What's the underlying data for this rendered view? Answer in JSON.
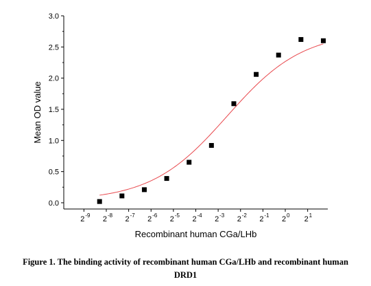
{
  "chart_data": {
    "type": "scatter",
    "title": "",
    "xlabel": "Recombinant human CGa/LHb",
    "ylabel": "Mean OD value",
    "x_scale": "log2",
    "x_tick_exponents": [
      -9,
      -8,
      -7,
      -6,
      -5,
      -4,
      -3,
      -2,
      -1,
      0,
      1
    ],
    "x_tick_labels": [
      "2",
      "2",
      "2",
      "2",
      "2",
      "2",
      "2",
      "2",
      "2",
      "2",
      "2"
    ],
    "x_tick_superscripts": [
      "-9",
      "-8",
      "-7",
      "-6",
      "-5",
      "-4",
      "-3",
      "-2",
      "-1",
      "0",
      "1"
    ],
    "xlim_exponent": [
      -9.9,
      1.9
    ],
    "yticks": [
      0.0,
      0.5,
      1.0,
      1.5,
      2.0,
      2.5,
      3.0
    ],
    "ytick_labels": [
      "0.0",
      "0.5",
      "1.0",
      "1.5",
      "2.0",
      "2.5",
      "3.0"
    ],
    "ylim": [
      -0.1,
      3.0
    ],
    "grid": false,
    "points": [
      {
        "x_exp": -8.3,
        "y": 0.02
      },
      {
        "x_exp": -7.3,
        "y": 0.11
      },
      {
        "x_exp": -6.3,
        "y": 0.21
      },
      {
        "x_exp": -5.3,
        "y": 0.39
      },
      {
        "x_exp": -4.3,
        "y": 0.65
      },
      {
        "x_exp": -3.3,
        "y": 0.92
      },
      {
        "x_exp": -2.3,
        "y": 1.59
      },
      {
        "x_exp": -1.3,
        "y": 2.06
      },
      {
        "x_exp": -0.3,
        "y": 2.37
      },
      {
        "x_exp": 0.7,
        "y": 2.62
      },
      {
        "x_exp": 1.7,
        "y": 2.6
      }
    ],
    "fit_curve": {
      "model": "four-parameter logistic",
      "bottom": 0.03,
      "top": 2.75,
      "ec50_exp": -2.6,
      "hill": 0.85,
      "x_exp_range": [
        -8.3,
        1.7
      ],
      "color": "#e8474c"
    },
    "marker_color": "#000000"
  },
  "caption": {
    "line1": "Figure 1. The binding activity of recombinant human CGa/LHb and recombinant human",
    "line2": "DRD1"
  }
}
